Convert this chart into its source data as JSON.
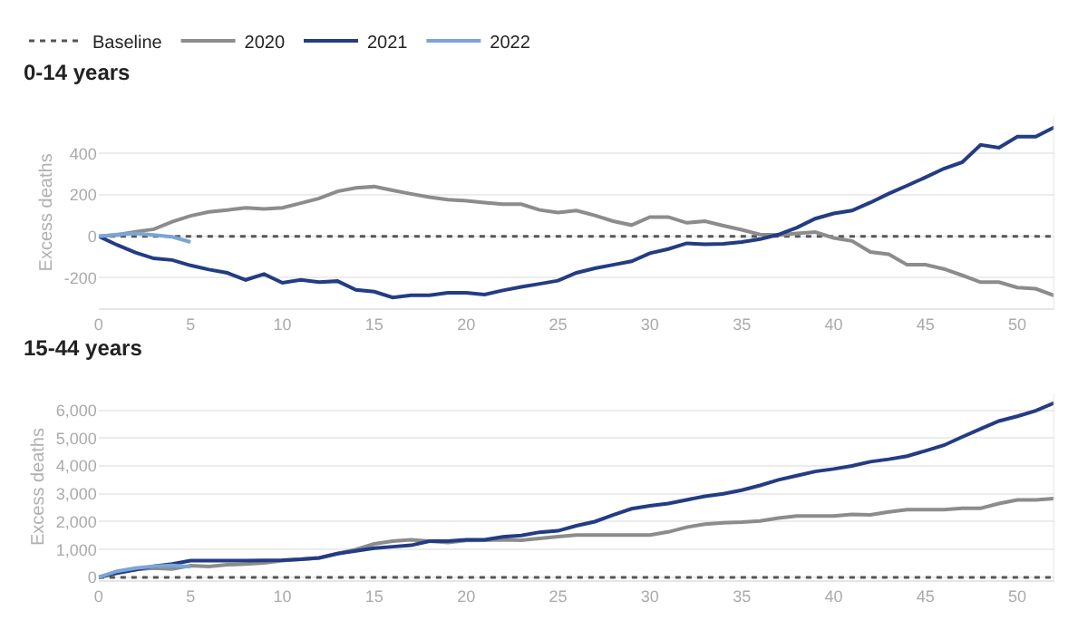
{
  "chart_data": [
    {
      "type": "line",
      "title": "0-14 years",
      "ylabel": "Excess deaths",
      "x": [
        0,
        1,
        2,
        3,
        4,
        5,
        6,
        7,
        8,
        9,
        10,
        11,
        12,
        13,
        14,
        15,
        16,
        17,
        18,
        19,
        20,
        21,
        22,
        23,
        24,
        25,
        26,
        27,
        28,
        29,
        30,
        31,
        32,
        33,
        34,
        35,
        36,
        37,
        38,
        39,
        40,
        41,
        42,
        43,
        44,
        45,
        46,
        47,
        48,
        49,
        50,
        51,
        52
      ],
      "xlim": [
        0,
        52
      ],
      "xticks": [
        0,
        5,
        10,
        15,
        20,
        25,
        30,
        35,
        40,
        45,
        50
      ],
      "ylim": [
        -350,
        580
      ],
      "yticks": [
        -200,
        0,
        200,
        400
      ],
      "grid": "y",
      "legend": "top left",
      "line_style": "solid",
      "marker": "none",
      "ref_lines": [
        {
          "axis": "y",
          "value": 0,
          "label": "Baseline",
          "color": "#555555",
          "line_style": "dotted"
        }
      ],
      "series": [
        {
          "name": "2020",
          "color": "#8c8c8c",
          "values": [
            0,
            6,
            22,
            34,
            70,
            99,
            118,
            127,
            138,
            132,
            138,
            160,
            183,
            217,
            234,
            240,
            222,
            205,
            189,
            177,
            172,
            163,
            155,
            155,
            127,
            115,
            124,
            101,
            73,
            54,
            93,
            93,
            65,
            73,
            51,
            31,
            8,
            6,
            14,
            20,
            -8,
            -23,
            -76,
            -87,
            -138,
            -138,
            -158,
            -189,
            -222,
            -222,
            -248,
            -254,
            -287
          ]
        },
        {
          "name": "2021",
          "color": "#233c84",
          "values": [
            0,
            -42,
            -79,
            -107,
            -115,
            -141,
            -161,
            -177,
            -211,
            -183,
            -225,
            -211,
            -222,
            -217,
            -259,
            -268,
            -296,
            -285,
            -285,
            -273,
            -273,
            -282,
            -262,
            -245,
            -230,
            -215,
            -177,
            -155,
            -138,
            -121,
            -82,
            -62,
            -34,
            -39,
            -37,
            -28,
            -14,
            8,
            42,
            85,
            110,
            124,
            163,
            206,
            245,
            285,
            327,
            358,
            442,
            428,
            482,
            482,
            527
          ]
        },
        {
          "name": "2022",
          "color": "#7aa6d6",
          "x": [
            0,
            1,
            2,
            3,
            4,
            5
          ],
          "values": [
            0,
            8,
            14,
            6,
            -3,
            -28
          ]
        }
      ]
    },
    {
      "type": "line",
      "title": "15-44 years",
      "ylabel": "Excess deaths",
      "x": [
        0,
        1,
        2,
        3,
        4,
        5,
        6,
        7,
        8,
        9,
        10,
        11,
        12,
        13,
        14,
        15,
        16,
        17,
        18,
        19,
        20,
        21,
        22,
        23,
        24,
        25,
        26,
        27,
        28,
        29,
        30,
        31,
        32,
        33,
        34,
        35,
        36,
        37,
        38,
        39,
        40,
        41,
        42,
        43,
        44,
        45,
        46,
        47,
        48,
        49,
        50,
        51,
        52
      ],
      "xlim": [
        0,
        52
      ],
      "xticks": [
        0,
        5,
        10,
        15,
        20,
        25,
        30,
        35,
        40,
        45,
        50
      ],
      "ylim": [
        -100,
        6600
      ],
      "yticks": [
        0,
        {
          "value": 1000,
          "label": "1,000"
        },
        {
          "value": 2000,
          "label": "2,000"
        },
        {
          "value": 3000,
          "label": "3,000"
        },
        {
          "value": 4000,
          "label": "4,000"
        },
        {
          "value": 5000,
          "label": "5,000"
        },
        {
          "value": 6000,
          "label": "6,000"
        }
      ],
      "grid": "y",
      "line_style": "solid",
      "marker": "none",
      "ref_lines": [
        {
          "axis": "y",
          "value": 0,
          "color": "#555555",
          "line_style": "dotted"
        }
      ],
      "series": [
        {
          "color": "#8c8c8c",
          "values": [
            0,
            200,
            280,
            330,
            300,
            420,
            390,
            450,
            480,
            520,
            600,
            650,
            700,
            850,
            1000,
            1200,
            1300,
            1350,
            1300,
            1250,
            1320,
            1330,
            1350,
            1330,
            1400,
            1460,
            1520,
            1520,
            1520,
            1520,
            1520,
            1630,
            1800,
            1910,
            1960,
            1980,
            2020,
            2130,
            2200,
            2200,
            2200,
            2260,
            2240,
            2350,
            2430,
            2430,
            2430,
            2480,
            2480,
            2650,
            2780,
            2780,
            2830
          ]
        },
        {
          "color": "#233c84",
          "values": [
            0,
            150,
            270,
            400,
            480,
            600,
            600,
            600,
            600,
            610,
            620,
            650,
            700,
            850,
            950,
            1050,
            1100,
            1150,
            1300,
            1300,
            1350,
            1350,
            1450,
            1500,
            1620,
            1670,
            1850,
            2000,
            2240,
            2460,
            2570,
            2650,
            2780,
            2910,
            3000,
            3130,
            3300,
            3500,
            3650,
            3800,
            3890,
            4000,
            4150,
            4240,
            4350,
            4540,
            4740,
            5040,
            5330,
            5610,
            5780,
            5980,
            6260
          ]
        },
        {
          "color": "#7aa6d6",
          "x": [
            0,
            1,
            2,
            3,
            4,
            5
          ],
          "values": [
            0,
            220,
            330,
            400,
            430,
            380
          ]
        }
      ]
    }
  ]
}
